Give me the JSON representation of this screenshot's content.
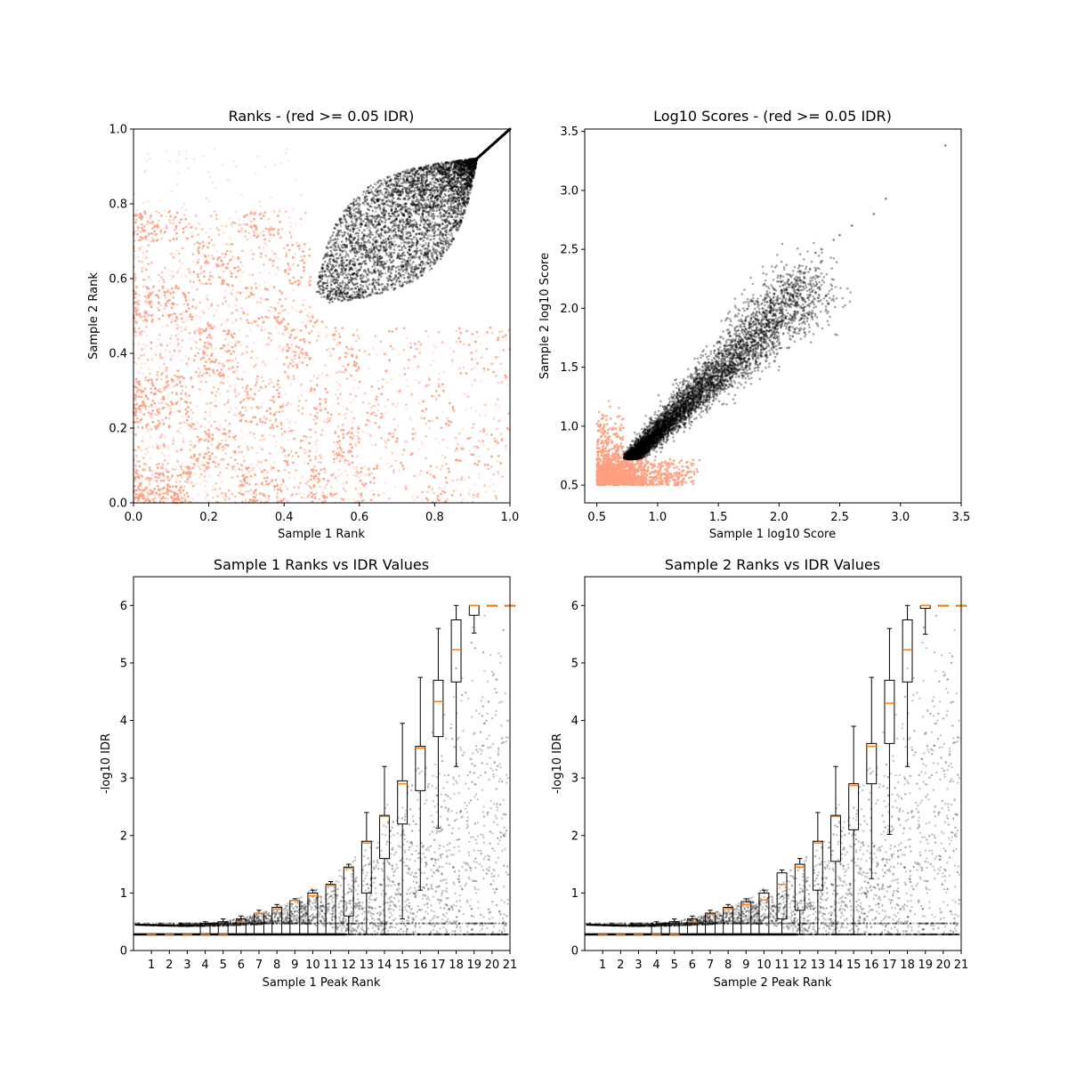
{
  "chart_data": [
    {
      "type": "scatter",
      "title": "Ranks - (red >= 0.05 IDR)",
      "xlabel": "Sample 1 Rank",
      "ylabel": "Sample 2 Rank",
      "xlim": [
        0.0,
        1.0
      ],
      "ylim": [
        0.0,
        1.0
      ],
      "xticks": [
        "0.0",
        "0.2",
        "0.4",
        "0.6",
        "0.8",
        "1.0"
      ],
      "yticks": [
        "0.0",
        "0.2",
        "0.4",
        "0.6",
        "0.8",
        "1.0"
      ],
      "grid": false,
      "colors": {
        "failing": "#ff9f80",
        "passing": "#000000"
      },
      "series": [
        {
          "description_key": "idr_ge_0.05",
          "color": "#ff9f80",
          "region": {
            "x": [
              0.0,
              1.0
            ],
            "y": [
              0.0,
              0.75
            ]
          }
        },
        {
          "description_key": "idr_lt_0.05",
          "color": "#000000",
          "region": {
            "x": [
              0.47,
              1.0
            ],
            "y": [
              0.47,
              1.0
            ]
          }
        }
      ]
    },
    {
      "type": "scatter",
      "title": "Log10 Scores - (red >= 0.05 IDR)",
      "xlabel": "Sample 1 log10 Score",
      "ylabel": "Sample 2 log10 Score",
      "xlim": [
        0.4,
        3.5
      ],
      "ylim": [
        0.35,
        3.52
      ],
      "xticks": [
        "0.5",
        "1.0",
        "1.5",
        "2.0",
        "2.5",
        "3.0",
        "3.5"
      ],
      "yticks": [
        "0.5",
        "1.0",
        "1.5",
        "2.0",
        "2.5",
        "3.0",
        "3.5"
      ],
      "grid": false,
      "colors": {
        "failing": "#ff9f80",
        "passing": "#000000"
      },
      "series": [
        {
          "description_key": "idr_ge_0.05",
          "color": "#ff9f80",
          "region": {
            "x": [
              0.5,
              1.35
            ],
            "y": [
              0.5,
              1.1
            ]
          }
        },
        {
          "description_key": "idr_lt_0.05",
          "color": "#000000",
          "region": {
            "x": [
              0.72,
              3.37
            ],
            "y": [
              0.72,
              3.38
            ]
          }
        }
      ]
    },
    {
      "type": "box",
      "title": "Sample 1 Ranks vs IDR Values",
      "xlabel": "Sample 1 Peak Rank",
      "ylabel": "-log10 IDR",
      "xlim": [
        0,
        21
      ],
      "ylim": [
        0,
        6.5
      ],
      "xticks": [
        "1",
        "2",
        "3",
        "4",
        "5",
        "6",
        "7",
        "8",
        "9",
        "10",
        "11",
        "12",
        "13",
        "14",
        "15",
        "16",
        "17",
        "18",
        "19",
        "20",
        "21"
      ],
      "yticks": [
        "0",
        "1",
        "2",
        "3",
        "4",
        "5",
        "6"
      ],
      "grid": false,
      "colors": {
        "points": "#000000",
        "median": "#ff7f0e",
        "box": "#000000"
      },
      "boxes": [
        {
          "x": 1,
          "q1": 0.28,
          "median": 0.28,
          "q3": 0.28,
          "whislo": 0.28,
          "whishi": 0.28
        },
        {
          "x": 2,
          "q1": 0.28,
          "median": 0.28,
          "q3": 0.28,
          "whislo": 0.28,
          "whishi": 0.28
        },
        {
          "x": 3,
          "q1": 0.28,
          "median": 0.28,
          "q3": 0.28,
          "whislo": 0.28,
          "whishi": 0.28
        },
        {
          "x": 4,
          "q1": 0.28,
          "median": 0.28,
          "q3": 0.47,
          "whislo": 0.28,
          "whishi": 0.5
        },
        {
          "x": 5,
          "q1": 0.28,
          "median": 0.28,
          "q3": 0.5,
          "whislo": 0.28,
          "whishi": 0.55
        },
        {
          "x": 6,
          "q1": 0.28,
          "median": 0.5,
          "q3": 0.55,
          "whislo": 0.28,
          "whishi": 0.6
        },
        {
          "x": 7,
          "q1": 0.28,
          "median": 0.65,
          "q3": 0.65,
          "whislo": 0.28,
          "whishi": 0.7
        },
        {
          "x": 8,
          "q1": 0.28,
          "median": 0.72,
          "q3": 0.75,
          "whislo": 0.28,
          "whishi": 0.8
        },
        {
          "x": 9,
          "q1": 0.28,
          "median": 0.87,
          "q3": 0.87,
          "whislo": 0.28,
          "whishi": 0.9
        },
        {
          "x": 10,
          "q1": 0.28,
          "median": 0.95,
          "q3": 1.0,
          "whislo": 0.28,
          "whishi": 1.05
        },
        {
          "x": 11,
          "q1": 0.28,
          "median": 1.13,
          "q3": 1.15,
          "whislo": 0.28,
          "whishi": 1.2
        },
        {
          "x": 12,
          "q1": 0.6,
          "median": 1.43,
          "q3": 1.45,
          "whislo": 0.28,
          "whishi": 1.5
        },
        {
          "x": 13,
          "q1": 1.0,
          "median": 1.87,
          "q3": 1.9,
          "whislo": 0.28,
          "whishi": 2.4
        },
        {
          "x": 14,
          "q1": 1.6,
          "median": 2.33,
          "q3": 2.35,
          "whislo": 0.28,
          "whishi": 3.2
        },
        {
          "x": 15,
          "q1": 2.2,
          "median": 2.9,
          "q3": 2.95,
          "whislo": 0.55,
          "whishi": 3.95
        },
        {
          "x": 16,
          "q1": 2.78,
          "median": 3.52,
          "q3": 3.55,
          "whislo": 1.05,
          "whishi": 4.75
        },
        {
          "x": 17,
          "q1": 3.72,
          "median": 4.33,
          "q3": 4.7,
          "whislo": 2.13,
          "whishi": 5.6
        },
        {
          "x": 18,
          "q1": 4.67,
          "median": 5.23,
          "q3": 5.75,
          "whislo": 3.2,
          "whishi": 6.0
        },
        {
          "x": 19,
          "q1": 5.83,
          "median": 6.0,
          "q3": 6.0,
          "whislo": 5.52,
          "whishi": 6.0
        },
        {
          "x": 20,
          "q1": 6.0,
          "median": 6.0,
          "q3": 6.0,
          "whislo": 6.0,
          "whishi": 6.0
        },
        {
          "x": 21,
          "q1": 6.0,
          "median": 6.0,
          "q3": 6.0,
          "whislo": 6.0,
          "whishi": 6.0
        }
      ]
    },
    {
      "type": "box",
      "title": "Sample 2 Ranks vs IDR Values",
      "xlabel": "Sample 2 Peak Rank",
      "ylabel": "-log10 IDR",
      "xlim": [
        0,
        21
      ],
      "ylim": [
        0,
        6.5
      ],
      "xticks": [
        "1",
        "2",
        "3",
        "4",
        "5",
        "6",
        "7",
        "8",
        "9",
        "10",
        "11",
        "12",
        "13",
        "14",
        "15",
        "16",
        "17",
        "18",
        "19",
        "20",
        "21"
      ],
      "yticks": [
        "0",
        "1",
        "2",
        "3",
        "4",
        "5",
        "6"
      ],
      "grid": false,
      "colors": {
        "points": "#000000",
        "median": "#ff7f0e",
        "box": "#000000"
      },
      "boxes": [
        {
          "x": 1,
          "q1": 0.28,
          "median": 0.28,
          "q3": 0.28,
          "whislo": 0.28,
          "whishi": 0.28
        },
        {
          "x": 2,
          "q1": 0.28,
          "median": 0.28,
          "q3": 0.28,
          "whislo": 0.28,
          "whishi": 0.28
        },
        {
          "x": 3,
          "q1": 0.28,
          "median": 0.28,
          "q3": 0.28,
          "whislo": 0.28,
          "whishi": 0.28
        },
        {
          "x": 4,
          "q1": 0.28,
          "median": 0.28,
          "q3": 0.45,
          "whislo": 0.28,
          "whishi": 0.5
        },
        {
          "x": 5,
          "q1": 0.28,
          "median": 0.28,
          "q3": 0.5,
          "whislo": 0.28,
          "whishi": 0.55
        },
        {
          "x": 6,
          "q1": 0.28,
          "median": 0.5,
          "q3": 0.55,
          "whislo": 0.28,
          "whishi": 0.6
        },
        {
          "x": 7,
          "q1": 0.28,
          "median": 0.63,
          "q3": 0.65,
          "whislo": 0.28,
          "whishi": 0.7
        },
        {
          "x": 8,
          "q1": 0.28,
          "median": 0.73,
          "q3": 0.75,
          "whislo": 0.28,
          "whishi": 0.8
        },
        {
          "x": 9,
          "q1": 0.28,
          "median": 0.8,
          "q3": 0.85,
          "whislo": 0.28,
          "whishi": 0.9
        },
        {
          "x": 10,
          "q1": 0.28,
          "median": 0.88,
          "q3": 1.0,
          "whislo": 0.28,
          "whishi": 1.05
        },
        {
          "x": 11,
          "q1": 0.55,
          "median": 1.15,
          "q3": 1.35,
          "whislo": 0.28,
          "whishi": 1.4
        },
        {
          "x": 12,
          "q1": 0.7,
          "median": 1.45,
          "q3": 1.5,
          "whislo": 0.28,
          "whishi": 1.6
        },
        {
          "x": 13,
          "q1": 1.05,
          "median": 1.87,
          "q3": 1.9,
          "whislo": 0.28,
          "whishi": 2.4
        },
        {
          "x": 14,
          "q1": 1.55,
          "median": 2.33,
          "q3": 2.35,
          "whislo": 0.28,
          "whishi": 3.2
        },
        {
          "x": 15,
          "q1": 2.1,
          "median": 2.87,
          "q3": 2.9,
          "whislo": 0.28,
          "whishi": 3.9
        },
        {
          "x": 16,
          "q1": 2.9,
          "median": 3.55,
          "q3": 3.6,
          "whislo": 1.25,
          "whishi": 4.75
        },
        {
          "x": 17,
          "q1": 3.6,
          "median": 4.3,
          "q3": 4.7,
          "whislo": 2.02,
          "whishi": 5.6
        },
        {
          "x": 18,
          "q1": 4.67,
          "median": 5.23,
          "q3": 5.75,
          "whislo": 3.2,
          "whishi": 6.0
        },
        {
          "x": 19,
          "q1": 5.95,
          "median": 6.0,
          "q3": 6.0,
          "whislo": 5.5,
          "whishi": 6.0
        },
        {
          "x": 20,
          "q1": 6.0,
          "median": 6.0,
          "q3": 6.0,
          "whislo": 6.0,
          "whishi": 6.0
        },
        {
          "x": 21,
          "q1": 6.0,
          "median": 6.0,
          "q3": 6.0,
          "whislo": 6.0,
          "whishi": 6.0
        }
      ]
    }
  ]
}
